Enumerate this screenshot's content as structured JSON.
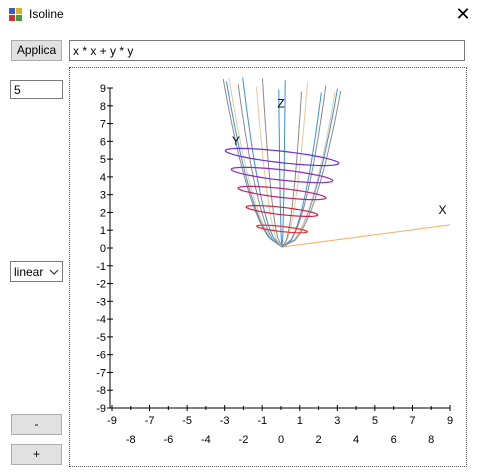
{
  "window": {
    "title": "Isoline",
    "icon": "app-window-icon",
    "close_glyph": "✕"
  },
  "controls": {
    "apply_label": "Applica",
    "formula_value": "x * x + y * y",
    "levels_value": "5",
    "scale_selected": "linear",
    "minus_label": "-",
    "plus_label": "+"
  },
  "colors": {
    "level_1": "#e03030",
    "level_2": "#d02040",
    "level_3": "#c02070",
    "level_4": "#8a2db8",
    "level_5": "#6a30d0",
    "axis_line": "#f0b060",
    "grid_blue": "#3a8fd8",
    "grid_gray": "#8a8a8a",
    "grid_tan": "#e8c898"
  },
  "chart_data": {
    "type": "line",
    "y_ticks": [
      "9",
      "8",
      "7",
      "6",
      "5",
      "4",
      "3",
      "2",
      "1",
      "0",
      "-1",
      "-2",
      "-3",
      "-4",
      "-5",
      "-6",
      "-7",
      "-8",
      "-9"
    ],
    "x_ticks_top": [
      "-9",
      "-7",
      "-5",
      "-3",
      "-1",
      "1",
      "3",
      "5",
      "7",
      "9"
    ],
    "x_ticks_bottom": [
      "-8",
      "-6",
      "-4",
      "-2",
      "0",
      "2",
      "4",
      "6",
      "8"
    ],
    "ylim": [
      -9,
      9
    ],
    "xlim": [
      -9,
      9
    ],
    "axis_labels": {
      "x": "X",
      "y": "Y",
      "z": "Z"
    },
    "isolines": [
      {
        "level": 1,
        "z": 1
      },
      {
        "level": 2,
        "z": 2
      },
      {
        "level": 3,
        "z": 3
      },
      {
        "level": 4,
        "z": 4
      },
      {
        "level": 5,
        "z": 5
      }
    ]
  }
}
